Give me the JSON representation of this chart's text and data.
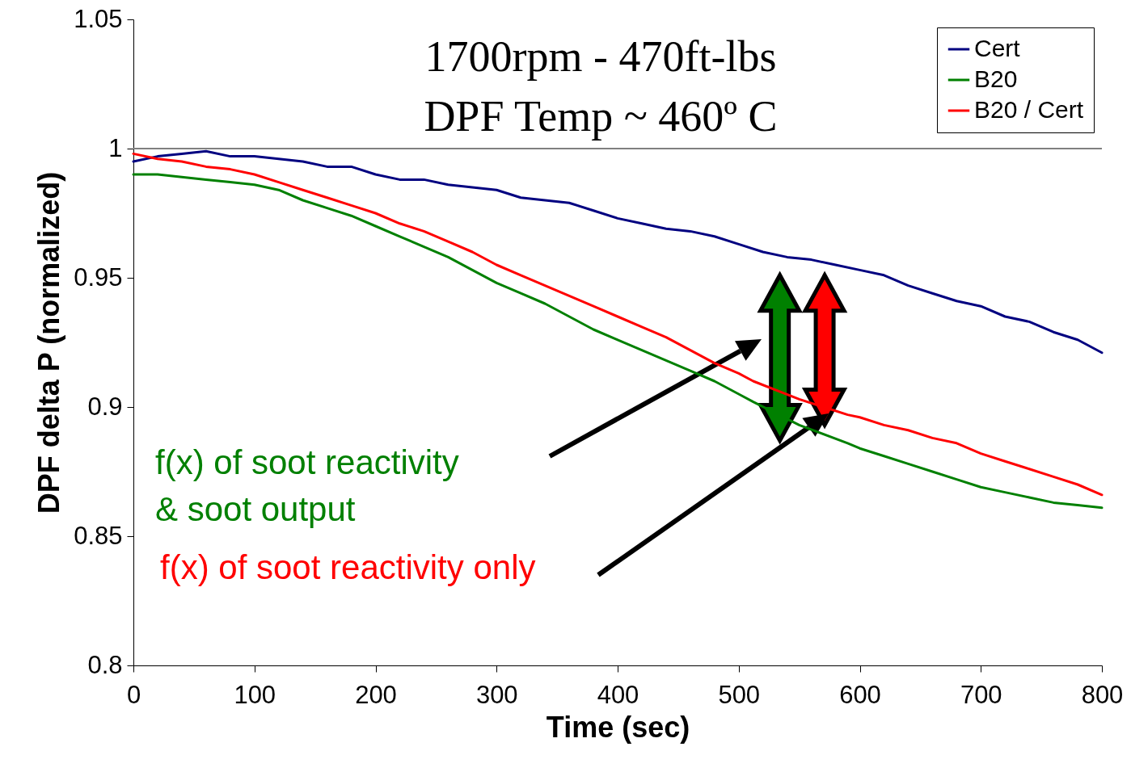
{
  "chart_data": {
    "type": "line",
    "title": "1700rpm - 470ft-lbs",
    "subtitle": "DPF Temp ~ 460º C",
    "xlabel": "Time (sec)",
    "ylabel": "DPF delta P (normalized)",
    "x": [
      0,
      20,
      40,
      60,
      80,
      100,
      120,
      140,
      160,
      180,
      200,
      220,
      240,
      260,
      280,
      300,
      320,
      340,
      360,
      380,
      400,
      420,
      440,
      460,
      480,
      500,
      520,
      540,
      560,
      580,
      600,
      620,
      640,
      660,
      680,
      700,
      720,
      740,
      760,
      780,
      800
    ],
    "series": [
      {
        "name": "Cert",
        "color": "#000080",
        "values": [
          0.995,
          0.997,
          0.998,
          0.999,
          0.997,
          0.997,
          0.996,
          0.995,
          0.993,
          0.993,
          0.99,
          0.988,
          0.988,
          0.986,
          0.985,
          0.984,
          0.981,
          0.98,
          0.979,
          0.976,
          0.973,
          0.971,
          0.969,
          0.968,
          0.966,
          0.963,
          0.96,
          0.958,
          0.957,
          0.955,
          0.953,
          0.951,
          0.947,
          0.944,
          0.941,
          0.939,
          0.935,
          0.933,
          0.929,
          0.926,
          0.921
        ]
      },
      {
        "name": "B20",
        "color": "#008000",
        "x": [
          0,
          20,
          40,
          60,
          80,
          100,
          120,
          140,
          160,
          180,
          200,
          220,
          240,
          260,
          280,
          300,
          320,
          340,
          360,
          380,
          400,
          420,
          440,
          460,
          480,
          500,
          512,
          550,
          590,
          600,
          620,
          640,
          660,
          680,
          700,
          720,
          740,
          760,
          780,
          800
        ],
        "values": [
          0.99,
          0.99,
          0.989,
          0.988,
          0.987,
          0.986,
          0.984,
          0.98,
          0.977,
          0.974,
          0.97,
          0.966,
          0.962,
          0.958,
          0.953,
          0.948,
          0.944,
          0.94,
          0.935,
          0.93,
          0.926,
          0.922,
          0.918,
          0.914,
          0.91,
          0.905,
          0.902,
          0.893,
          0.886,
          0.884,
          0.881,
          0.878,
          0.875,
          0.872,
          0.869,
          0.867,
          0.865,
          0.863,
          0.862,
          0.861
        ]
      },
      {
        "name": "B20 / Cert",
        "color": "#ff0000",
        "x": [
          0,
          20,
          40,
          60,
          80,
          100,
          120,
          140,
          160,
          180,
          200,
          220,
          240,
          260,
          280,
          300,
          320,
          340,
          360,
          380,
          400,
          420,
          440,
          460,
          480,
          500,
          512,
          550,
          590,
          600,
          620,
          640,
          660,
          680,
          700,
          720,
          740,
          760,
          780,
          800
        ],
        "values": [
          0.998,
          0.996,
          0.995,
          0.993,
          0.992,
          0.99,
          0.987,
          0.984,
          0.981,
          0.978,
          0.975,
          0.971,
          0.968,
          0.964,
          0.96,
          0.955,
          0.951,
          0.947,
          0.943,
          0.939,
          0.935,
          0.931,
          0.927,
          0.922,
          0.917,
          0.913,
          0.91,
          0.903,
          0.897,
          0.896,
          0.893,
          0.891,
          0.888,
          0.886,
          0.882,
          0.879,
          0.876,
          0.873,
          0.87,
          0.866
        ]
      }
    ],
    "xlim": [
      0,
      800
    ],
    "xticks": [
      0,
      100,
      200,
      300,
      400,
      500,
      600,
      700,
      800
    ],
    "ylim": [
      0.8,
      1.05
    ],
    "yticks": [
      0.8,
      0.85,
      0.9,
      0.95,
      1,
      1.05
    ],
    "ref_lines": [
      {
        "axis": "y",
        "value": 1,
        "color": "#808080"
      }
    ],
    "annotations": [
      "f(x) of soot reactivity\n& soot output",
      "f(x) of soot reactivity only"
    ],
    "legend": "top right",
    "grid": false,
    "marker": "none",
    "line_style": "solid"
  }
}
